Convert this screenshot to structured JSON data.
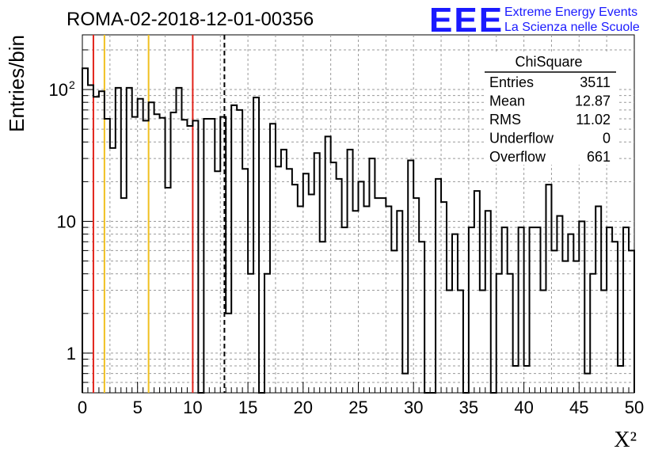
{
  "title": "ROMA-02-2018-12-01-00356",
  "logo": {
    "mark": "EEE",
    "line1": "Extreme Energy Events",
    "line2": "La Scienza nelle Scuole",
    "color": "#1a1aff"
  },
  "stats_box": {
    "title": "ChiSquare",
    "rows": [
      {
        "label": "Entries",
        "value": "3511"
      },
      {
        "label": "Mean",
        "value": "12.87"
      },
      {
        "label": "RMS",
        "value": "11.02"
      },
      {
        "label": "Underflow",
        "value": "0"
      },
      {
        "label": "Overflow",
        "value": "661"
      }
    ]
  },
  "chart_data": {
    "type": "bar",
    "histogram_style": "step",
    "title": "ROMA-02-2018-12-01-00356",
    "xlabel": "X²",
    "ylabel": "Entries/bin",
    "xlim": [
      0,
      50
    ],
    "ylim": [
      0.5,
      260
    ],
    "yscale": "log",
    "grid": true,
    "bin_width": 0.5,
    "x_ticks": [
      "0",
      "5",
      "10",
      "15",
      "20",
      "25",
      "30",
      "35",
      "40",
      "45",
      "50"
    ],
    "y_ticks": [
      {
        "value": 1,
        "label": "1"
      },
      {
        "value": 10,
        "label": "10"
      },
      {
        "value": 100,
        "label": "10",
        "sup": "2"
      }
    ],
    "values": [
      145,
      108,
      88,
      97,
      60,
      36,
      103,
      15,
      103,
      62,
      85,
      58,
      80,
      65,
      61,
      18,
      67,
      103,
      59,
      53,
      58,
      0,
      60,
      60,
      24,
      62,
      2,
      76,
      70,
      25,
      4,
      87,
      0,
      4,
      55,
      26,
      35,
      25,
      19,
      13,
      23,
      16,
      33,
      7,
      44,
      28,
      21,
      9,
      35,
      12,
      20,
      13,
      30,
      15,
      15,
      13,
      6,
      12,
      0.7,
      29,
      15,
      7,
      0,
      0.5,
      21,
      14,
      3,
      8,
      3,
      0,
      9,
      17,
      3,
      12,
      0,
      4,
      9,
      4,
      0.8,
      9,
      0.8,
      9,
      9,
      3,
      19,
      6,
      11,
      5,
      8,
      5,
      10,
      0.7,
      4,
      13,
      3,
      9,
      7,
      0.8,
      9,
      6
    ],
    "vertical_lines": [
      {
        "x": 1,
        "color": "#e2231a",
        "style": "solid"
      },
      {
        "x": 2,
        "color": "#f0c020",
        "style": "solid"
      },
      {
        "x": 6,
        "color": "#f0c020",
        "style": "solid"
      },
      {
        "x": 10,
        "color": "#e2231a",
        "style": "solid"
      },
      {
        "x": 12.87,
        "color": "#000000",
        "style": "dashed"
      }
    ]
  }
}
